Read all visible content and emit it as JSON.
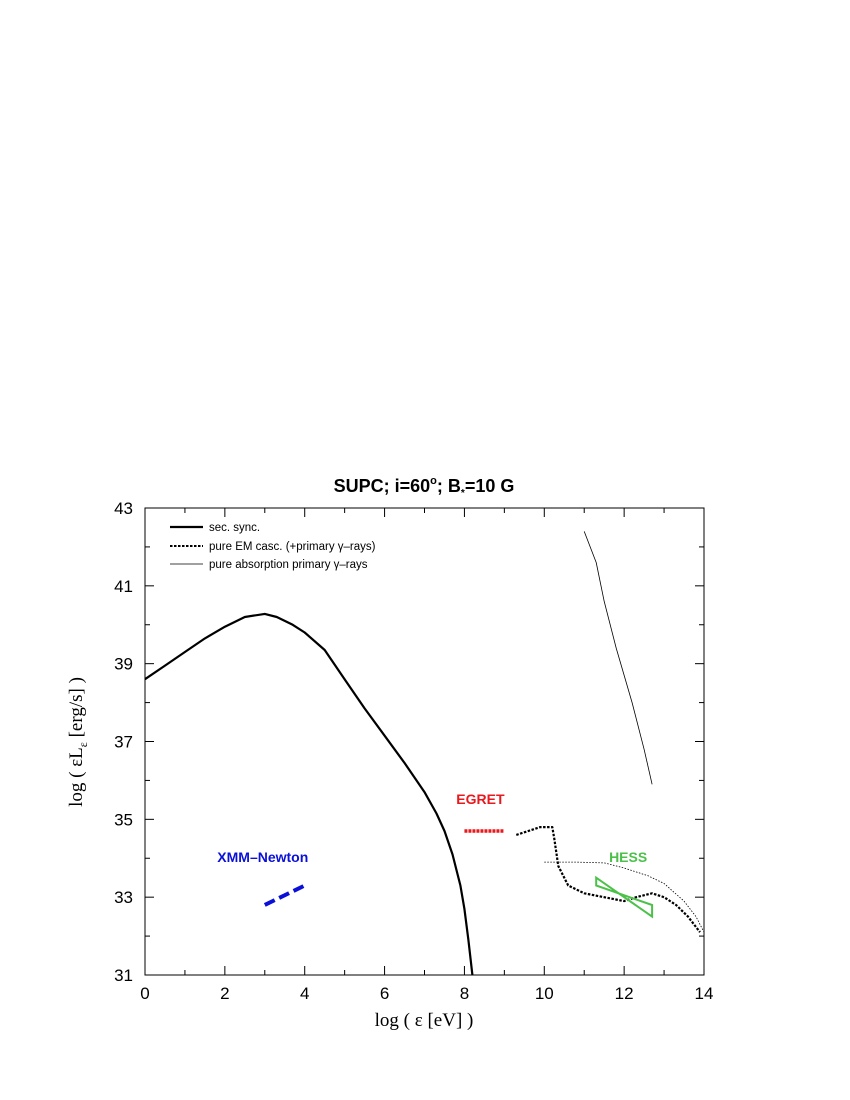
{
  "chart_data": {
    "type": "line",
    "title": "SUPC; i=60°; B*=10 G",
    "title_parts": {
      "main": "SUPC; i=60",
      "degree": "o",
      "b": "; B",
      "star": "*",
      "tail": "=10 G"
    },
    "xlabel": "log ( ε [eV] )",
    "ylabel": "log ( εL_ε [erg/s] )",
    "ylabel_parts": {
      "pre": "log ( εL",
      "sub": "ε",
      "post": " [erg/s] )"
    },
    "xlim": [
      0,
      14
    ],
    "ylim": [
      31,
      43
    ],
    "x_ticks": [
      "0",
      "2",
      "4",
      "6",
      "8",
      "10",
      "12",
      "14"
    ],
    "y_ticks": [
      "31",
      "33",
      "35",
      "37",
      "39",
      "41",
      "43"
    ],
    "grid": false,
    "legend_position": "top-left",
    "series": [
      {
        "name": "sec. sync.",
        "style": "solid-thick",
        "color": "#000000",
        "x": [
          0,
          0.5,
          1.0,
          1.5,
          2.0,
          2.5,
          3.0,
          3.3,
          3.7,
          4.0,
          4.5,
          5.0,
          5.5,
          6.0,
          6.5,
          7.0,
          7.3,
          7.5,
          7.7,
          7.9,
          8.0,
          8.1,
          8.2
        ],
        "y": [
          38.6,
          38.95,
          39.3,
          39.65,
          39.95,
          40.2,
          40.28,
          40.2,
          40.0,
          39.8,
          39.35,
          38.6,
          37.85,
          37.15,
          36.45,
          35.7,
          35.15,
          34.7,
          34.1,
          33.3,
          32.7,
          31.9,
          31.0
        ]
      },
      {
        "name": "pure EM casc. (+primary γ–rays)",
        "style": "dotted-thick",
        "color": "#000000",
        "x": [
          9.3,
          9.6,
          9.9,
          10.2,
          10.25,
          10.35,
          10.6,
          11.0,
          11.5,
          12.0,
          12.3,
          12.7,
          13.0,
          13.3,
          13.6,
          13.9
        ],
        "y": [
          34.6,
          34.7,
          34.8,
          34.8,
          34.5,
          33.8,
          33.3,
          33.1,
          33.0,
          32.9,
          33.0,
          33.1,
          33.0,
          32.8,
          32.5,
          32.1
        ]
      },
      {
        "name": "pure absorption primary γ–rays",
        "style": "solid-thin",
        "color": "#000000",
        "x": [
          11.0,
          11.3,
          11.5,
          11.8,
          12.2,
          12.5,
          12.7
        ],
        "y": [
          42.4,
          41.6,
          40.6,
          39.4,
          38.0,
          36.8,
          35.9
        ]
      },
      {
        "name": "",
        "style": "dotted-thin",
        "color": "#000000",
        "x": [
          10.0,
          10.8,
          11.5,
          12.0,
          12.6,
          13.0,
          13.5,
          13.8,
          14.0
        ],
        "y": [
          33.9,
          33.9,
          33.88,
          33.75,
          33.55,
          33.35,
          32.9,
          32.5,
          32.1
        ]
      }
    ],
    "observations": [
      {
        "name": "EGRET",
        "color": "#e8191e",
        "x": [
          8.0,
          9.0
        ],
        "y": [
          34.7,
          34.7
        ]
      },
      {
        "name": "XMM–Newton",
        "color": "#0a10d8",
        "x": [
          3.0,
          4.0
        ],
        "y": [
          32.8,
          33.3
        ]
      },
      {
        "name": "HESS",
        "color": "#4cc14a",
        "bowtie": {
          "x_left": 11.3,
          "x_right": 12.7,
          "y_left_top": 33.5,
          "y_left_bottom": 33.3,
          "y_right_top": 32.8,
          "y_right_bottom": 32.5
        }
      }
    ]
  }
}
